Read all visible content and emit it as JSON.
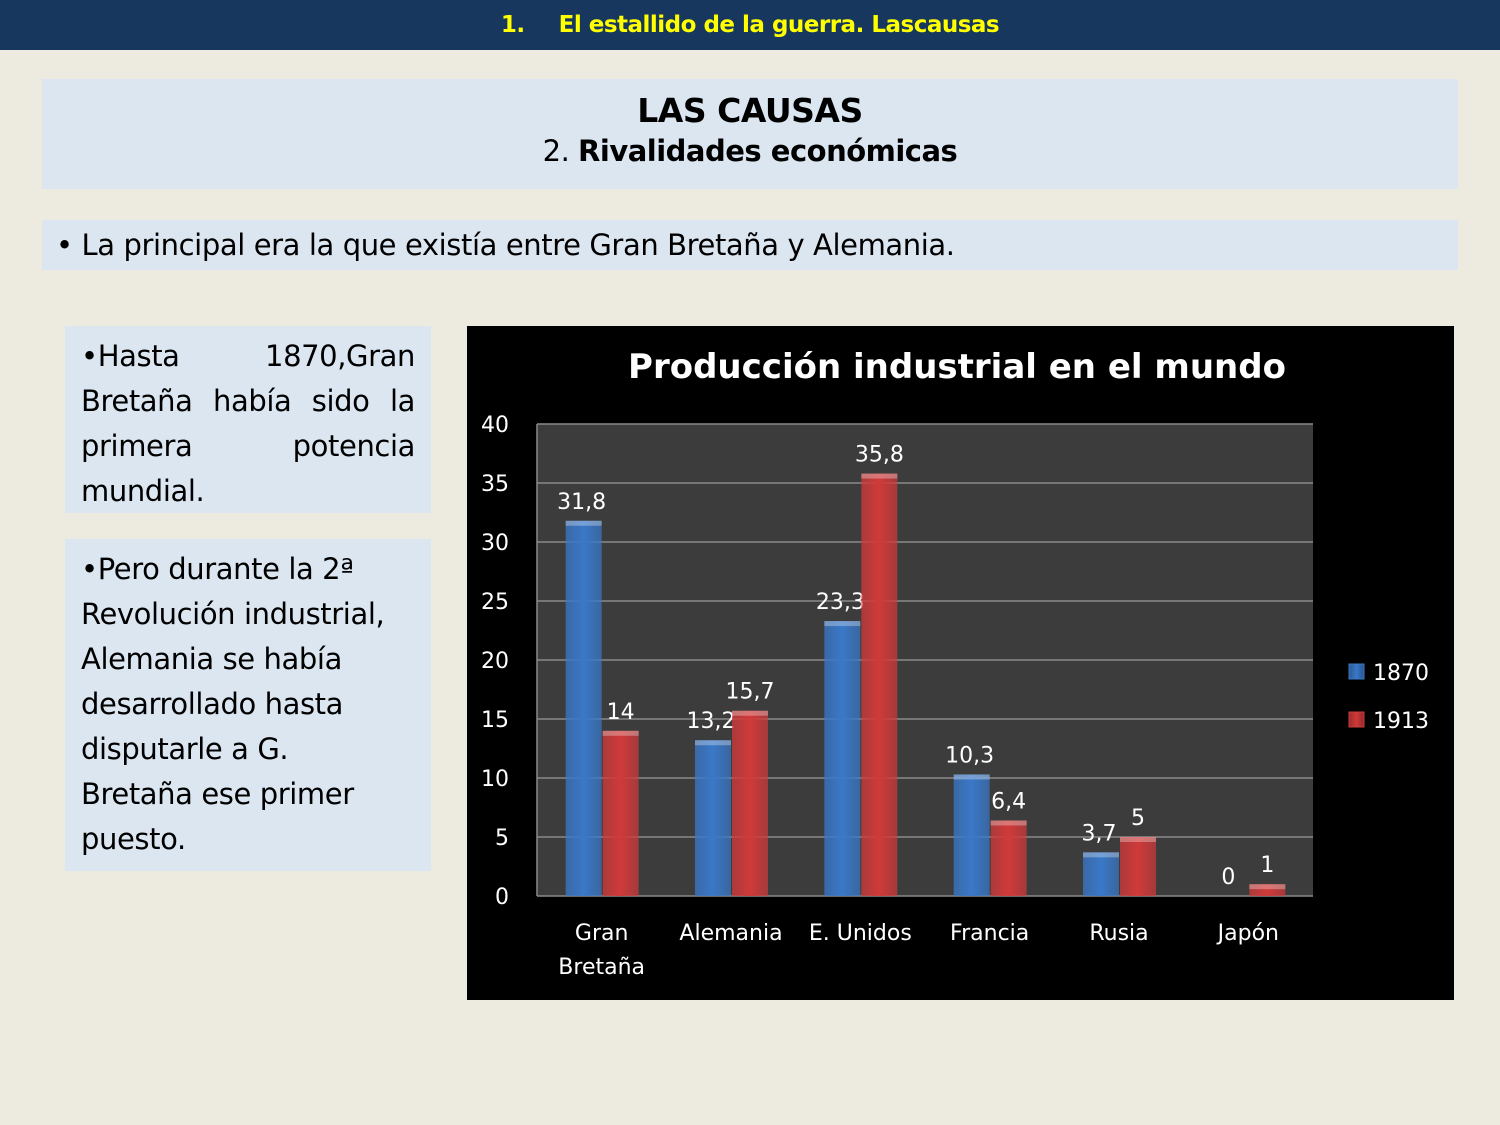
{
  "header": {
    "number": "1.",
    "title": "El estallido de la guerra. Lascausas"
  },
  "title": {
    "main": "LAS CAUSAS",
    "sub_number": "2.",
    "sub_text": "Rivalidades económicas"
  },
  "bullet": "• La principal era la que existía entre Gran Bretaña y  Alemania.",
  "box1": {
    "line1": "•Hasta 1870,Gran Bretaña había sido la primera potencia",
    "line2": "mundial."
  },
  "box2": [
    "•Pero durante la 2ª",
    "Revolución industrial,",
    "Alemania se había",
    "desarrollado hasta",
    "disputarle a G.",
    "Bretaña ese primer",
    "puesto."
  ],
  "chart_data": {
    "type": "bar",
    "title": "Producción industrial en el mundo",
    "categories": [
      [
        "Gran",
        "Bretaña"
      ],
      [
        "Alemania"
      ],
      [
        "E. Unidos"
      ],
      [
        "Francia"
      ],
      [
        "Rusia"
      ],
      [
        "Japón"
      ]
    ],
    "series": [
      {
        "name": "1870",
        "values": [
          31.8,
          13.2,
          23.3,
          10.3,
          3.7,
          0
        ],
        "labels": [
          "31,8",
          "13,2",
          "23,3",
          "10,3",
          "3,7",
          "0"
        ],
        "color": "#3a78c8"
      },
      {
        "name": "1913",
        "values": [
          14,
          15.7,
          35.8,
          6.4,
          5,
          1
        ],
        "labels": [
          "14",
          "15,7",
          "35,8",
          "6,4",
          "5",
          "1"
        ],
        "color": "#d03a3a"
      }
    ],
    "ylim": [
      0,
      40
    ],
    "yticks": [
      0,
      5,
      10,
      15,
      20,
      25,
      30,
      35,
      40
    ],
    "grid": true,
    "legend": "right"
  }
}
